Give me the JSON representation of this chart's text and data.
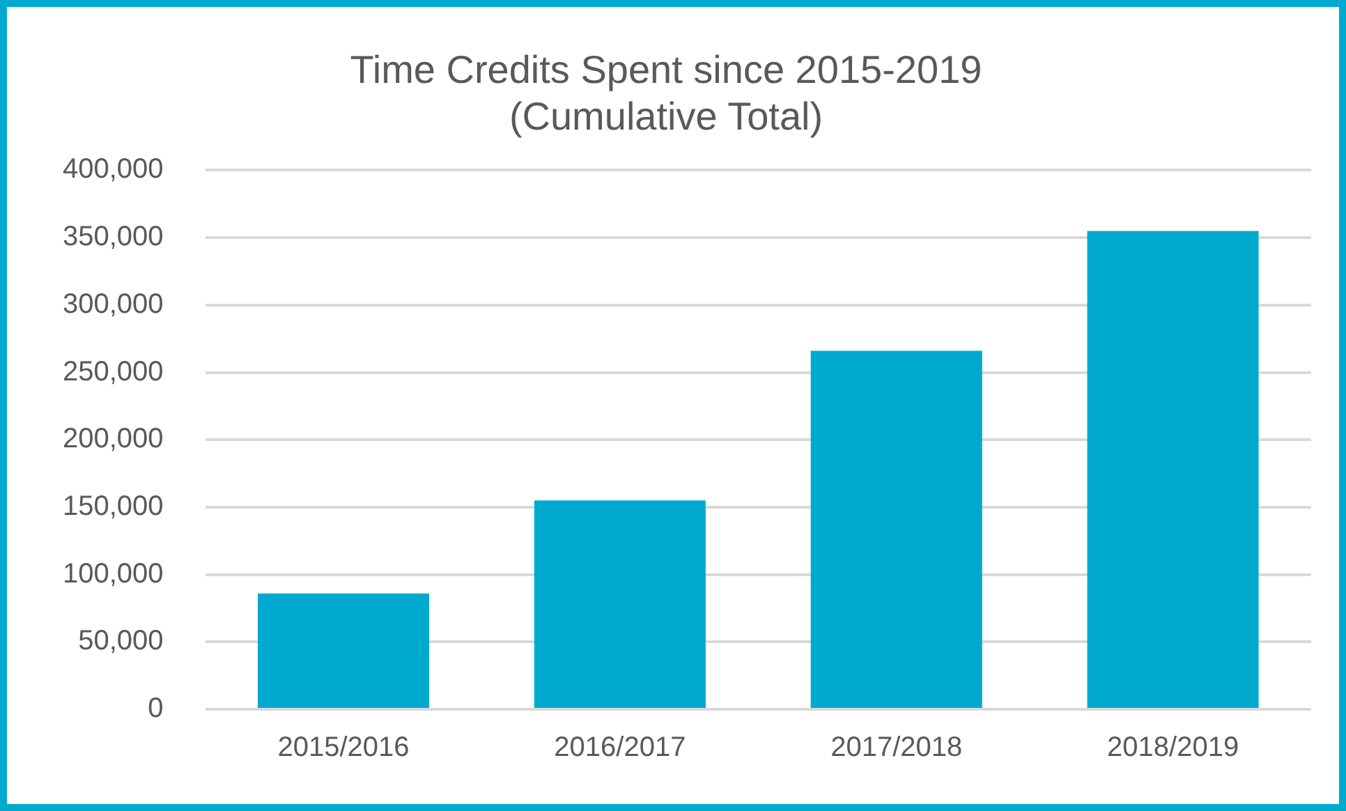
{
  "chart_data": {
    "type": "bar",
    "title": [
      "Time Credits Spent since 2015-2019",
      "(Cumulative Total)"
    ],
    "categories": [
      "2015/2016",
      "2016/2017",
      "2017/2018",
      "2018/2019"
    ],
    "values": [
      86000,
      155000,
      266000,
      355000
    ],
    "color": "#00aacf",
    "ylim": [
      0,
      400000
    ],
    "yticks": [
      {
        "value": 0,
        "label": "0"
      },
      {
        "value": 50000,
        "label": "50,000"
      },
      {
        "value": 100000,
        "label": "100,000"
      },
      {
        "value": 150000,
        "label": "150,000"
      },
      {
        "value": 200000,
        "label": "200,000"
      },
      {
        "value": 250000,
        "label": "250,000"
      },
      {
        "value": 300000,
        "label": "300,000"
      },
      {
        "value": 350000,
        "label": "350,000"
      },
      {
        "value": 400000,
        "label": "400,000"
      }
    ],
    "grid": "y",
    "legend": false
  }
}
